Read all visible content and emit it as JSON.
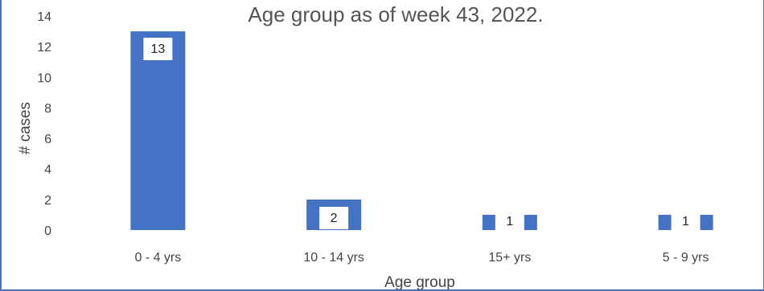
{
  "chart_data": {
    "type": "bar",
    "title": "Age group as of week 43, 2022.",
    "xlabel": "Age group",
    "ylabel": "# cases",
    "categories": [
      "0 - 4 yrs",
      "10 - 14 yrs",
      "15+ yrs",
      "5 - 9 yrs"
    ],
    "values": [
      13,
      2,
      1,
      1
    ],
    "data_labels": [
      "13",
      "2",
      "1",
      "1"
    ],
    "yticks": [
      "0",
      "2",
      "4",
      "6",
      "8",
      "10",
      "12",
      "14"
    ],
    "ylim": [
      0,
      14
    ],
    "grid": false,
    "legend": "none",
    "colors": {
      "bar": "#4472c4",
      "label_bg": "#ffffff",
      "frame": "#4472c4"
    }
  }
}
